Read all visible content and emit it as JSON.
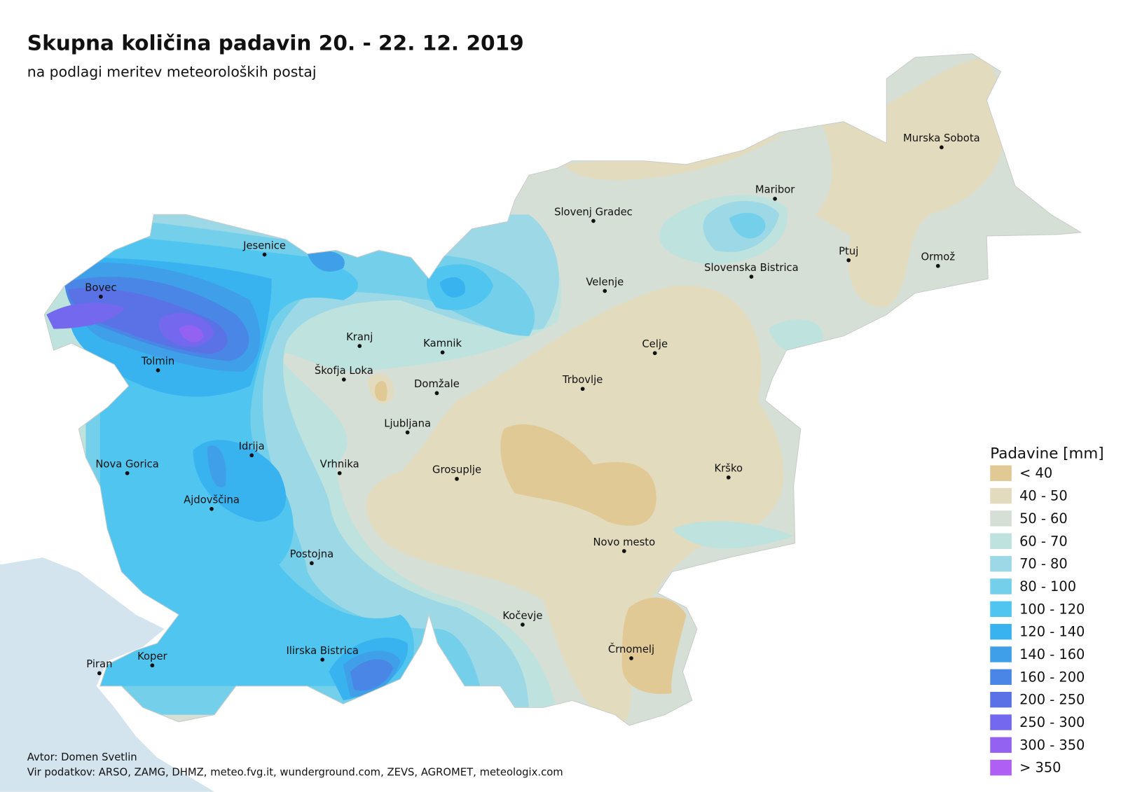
{
  "header": {
    "title": "Skupna količina padavin 20. - 22. 12. 2019",
    "subtitle": "na podlagi meritev meteoroloških postaj"
  },
  "cities": [
    "Murska Sobota",
    "Maribor",
    "Slovenj Gradec",
    "Jesenice",
    "Ptuj",
    "Ormož",
    "Slovenska Bistrica",
    "Velenje",
    "Bovec",
    "Celje",
    "Kranj",
    "Kamnik",
    "Tolmin",
    "Škofja Loka",
    "Domžale",
    "Trbovlje",
    "Ljubljana",
    "Idrija",
    "Nova Gorica",
    "Vrhnika",
    "Grosuplje",
    "Krško",
    "Ajdovščina",
    "Novo mesto",
    "Postojna",
    "Kočevje",
    "Ilirska Bistrica",
    "Črnomelj",
    "Koper",
    "Piran"
  ],
  "legend": {
    "title": "Padavine [mm]",
    "items": [
      {
        "label": "< 40",
        "color": "#e0c995"
      },
      {
        "label": "40 - 50",
        "color": "#e3dbbd"
      },
      {
        "label": "50 - 60",
        "color": "#d5dfd5"
      },
      {
        "label": "60 - 70",
        "color": "#bee2de"
      },
      {
        "label": "70 - 80",
        "color": "#9cd8e5"
      },
      {
        "label": "80 - 100",
        "color": "#74cfea"
      },
      {
        "label": "100 - 120",
        "color": "#4fc5f0"
      },
      {
        "label": "120 - 140",
        "color": "#39b3ef"
      },
      {
        "label": "140 - 160",
        "color": "#3f9fe8"
      },
      {
        "label": "160 - 200",
        "color": "#4986e6"
      },
      {
        "label": "200 - 250",
        "color": "#5a72e6"
      },
      {
        "label": "250 - 300",
        "color": "#7469ee"
      },
      {
        "label": "300 - 350",
        "color": "#9362f0"
      },
      {
        "label": "> 350",
        "color": "#b05ff5"
      }
    ]
  },
  "credits": {
    "author": "Avtor: Domen Svetlin",
    "sources": "Vir podatkov: ARSO, ZAMG, DHMZ, meteo.fvg.it, wunderground.com, ZEVS, AGROMET, meteologix.com"
  }
}
